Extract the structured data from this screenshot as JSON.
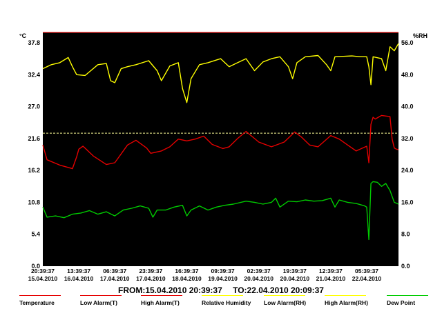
{
  "chart_data": {
    "type": "line",
    "plot_background": "#000000",
    "left_axis": {
      "unit": "°C",
      "ticks": [
        "37.8",
        "32.4",
        "27.0",
        "21.6",
        "16.2",
        "10.8",
        "5.4",
        "0.0"
      ],
      "ylim": [
        0,
        37.8
      ]
    },
    "right_axis": {
      "unit": "%RH",
      "ticks": [
        "56.0",
        "48.0",
        "40.0",
        "32.0",
        "24.0",
        "16.0",
        "8.0",
        "0.0"
      ],
      "ylim": [
        0,
        56
      ]
    },
    "x_ticks": [
      {
        "time": "20:39:37",
        "date": "15.04.2010"
      },
      {
        "time": "13:39:37",
        "date": "16.04.2010"
      },
      {
        "time": "06:39:37",
        "date": "17.04.2010"
      },
      {
        "time": "23:39:37",
        "date": "17.04.2010"
      },
      {
        "time": "16:39:37",
        "date": "18.04.2010"
      },
      {
        "time": "09:39:37",
        "date": "19.04.2010"
      },
      {
        "time": "02:39:37",
        "date": "20.04.2010"
      },
      {
        "time": "19:39:37",
        "date": "20.04.2010"
      },
      {
        "time": "12:39:37",
        "date": "21.04.2010"
      },
      {
        "time": "05:39:37",
        "date": "22.04.2010"
      }
    ],
    "x_hours": [
      0,
      17,
      34,
      51,
      68,
      85,
      102,
      119,
      136,
      153,
      168
    ],
    "range": {
      "from": "FROM:15.04.2010 20:39:37",
      "to": "TO:22.04.2010 20:09:37"
    },
    "alarm_line": {
      "axis": "left",
      "value": 22.5,
      "color": "#ffff99"
    },
    "series": [
      {
        "name": "Temperature",
        "color": "#e60000",
        "axis": "left",
        "x": [
          0,
          2,
          8,
          14,
          16,
          17,
          19,
          24,
          30,
          34,
          36,
          40,
          44,
          49,
          51,
          56,
          60,
          64,
          68,
          72,
          76,
          80,
          85,
          88,
          92,
          96,
          102,
          108,
          114,
          119,
          122,
          126,
          130,
          136,
          140,
          144,
          148,
          153,
          154,
          155,
          156,
          157,
          160,
          164,
          165,
          166,
          167,
          168
        ],
        "y": [
          20.5,
          18.0,
          17.1,
          16.5,
          18.5,
          19.8,
          20.3,
          18.6,
          17.2,
          17.5,
          18.5,
          20.5,
          21.3,
          20.0,
          19.1,
          19.5,
          20.2,
          21.5,
          21.2,
          21.5,
          22.0,
          20.6,
          19.9,
          20.2,
          21.6,
          22.8,
          21.0,
          20.2,
          21.0,
          22.7,
          21.9,
          20.5,
          20.2,
          22.1,
          21.5,
          20.5,
          19.5,
          20.3,
          17.5,
          24.0,
          25.2,
          24.9,
          25.5,
          25.3,
          21.5,
          20.0,
          19.8,
          19.7
        ]
      },
      {
        "name": "Relative Humidity",
        "color": "#ffff00",
        "axis": "right",
        "x": [
          0,
          4,
          8,
          12,
          14,
          16,
          20,
          26,
          30,
          32,
          34,
          37,
          40,
          44,
          50,
          54,
          56,
          60,
          64,
          66,
          68,
          70,
          74,
          78,
          84,
          88,
          92,
          96,
          100,
          104,
          108,
          112,
          116,
          118,
          120,
          124,
          130,
          134,
          136,
          138,
          142,
          146,
          150,
          153,
          154,
          155,
          156,
          160,
          162,
          164,
          166,
          168
        ],
        "y": [
          49.5,
          50.5,
          51.0,
          52.3,
          50.0,
          48.0,
          47.8,
          50.5,
          50.8,
          46.5,
          46.0,
          49.5,
          50.0,
          50.5,
          51.5,
          49.0,
          46.5,
          50.2,
          51.0,
          44.5,
          41.0,
          47.0,
          50.5,
          51.0,
          52.0,
          50.0,
          51.0,
          52.0,
          49.0,
          51.2,
          52.0,
          52.5,
          50.0,
          47.0,
          51.0,
          52.5,
          52.8,
          50.5,
          49.0,
          52.5,
          52.6,
          52.7,
          52.5,
          52.5,
          50.0,
          45.5,
          52.5,
          52.0,
          49.0,
          55.0,
          54.0,
          55.8
        ]
      },
      {
        "name": "Dew Point",
        "color": "#00cc00",
        "axis": "left",
        "x": [
          0,
          2,
          6,
          10,
          14,
          18,
          22,
          26,
          30,
          34,
          38,
          42,
          46,
          50,
          52,
          54,
          58,
          62,
          66,
          68,
          70,
          74,
          78,
          82,
          86,
          90,
          96,
          100,
          104,
          108,
          110,
          112,
          116,
          120,
          124,
          128,
          132,
          136,
          138,
          140,
          144,
          148,
          152,
          153,
          154,
          155,
          156,
          158,
          160,
          162,
          164,
          166,
          168
        ],
        "y": [
          10.0,
          8.3,
          8.5,
          8.2,
          8.8,
          9.0,
          9.4,
          8.8,
          9.2,
          8.5,
          9.5,
          9.8,
          10.2,
          9.8,
          8.3,
          9.5,
          9.5,
          10.0,
          10.3,
          8.5,
          9.5,
          10.2,
          9.5,
          10.0,
          10.3,
          10.5,
          11.0,
          10.8,
          10.5,
          10.8,
          11.5,
          10.0,
          11.0,
          10.9,
          11.2,
          11.0,
          11.1,
          11.5,
          10.0,
          11.2,
          10.8,
          10.6,
          10.2,
          10.0,
          4.5,
          14.0,
          14.3,
          14.2,
          13.5,
          14.0,
          12.8,
          10.8,
          10.5
        ]
      }
    ],
    "legend": [
      {
        "label": "Temperature",
        "color": "#e60000"
      },
      {
        "label": "Low Alarm(T)",
        "color": "#e60000"
      },
      {
        "label": "High Alarm(T)",
        "color": "#e60000"
      },
      {
        "label": "Relative Humidity",
        "color": "#ffff00"
      },
      {
        "label": "Low Alarm(RH)",
        "color": "#ffff00"
      },
      {
        "label": "High Alarm(RH)",
        "color": "#ffff00"
      },
      {
        "label": "Dew Point",
        "color": "#00cc00"
      }
    ]
  }
}
